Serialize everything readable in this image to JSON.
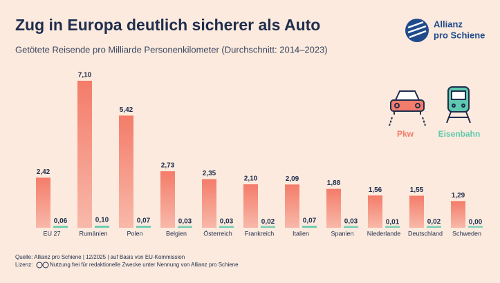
{
  "chart_data": {
    "type": "bar",
    "title": "Zug in Europa deutlich sicherer als Auto",
    "subtitle": "Getötete Reisende pro Milliarde Personenkilometer (Durchschnitt: 2014–2023)",
    "logo": [
      "Allianz",
      "pro Schiene"
    ],
    "source": "Quelle: Allianz pro Schiene | 12/2025 | auf Basis von EU-Kommission",
    "license_label": "Lizenz:",
    "license": "Nutzung frei für redaktionelle Zwecke unter Nennung von Allianz pro Schiene",
    "categories": [
      "EU 27",
      "Rumänien",
      "Polen",
      "Belgien",
      "Österreich",
      "Frankreich",
      "Italien",
      "Spanien",
      "Niederlande",
      "Deutschland",
      "Schweden"
    ],
    "series": [
      {
        "name": "Pkw",
        "color": "#f47c6a",
        "values": [
          2.42,
          7.1,
          5.42,
          2.73,
          2.35,
          2.1,
          2.09,
          1.88,
          1.56,
          1.55,
          1.29
        ],
        "value_labels": [
          "2,42",
          "7,10",
          "5,42",
          "2,73",
          "2,35",
          "2,10",
          "2,09",
          "1,88",
          "1,56",
          "1,55",
          "1,29"
        ]
      },
      {
        "name": "Eisenbahn",
        "color": "#5ec9ae",
        "values": [
          0.06,
          0.1,
          0.07,
          0.03,
          0.03,
          0.02,
          0.07,
          0.03,
          0.01,
          0.02,
          0.0
        ],
        "value_labels": [
          "0,06",
          "0,10",
          "0,07",
          "0,03",
          "0,03",
          "0,02",
          "0,07",
          "0,03",
          "0,01",
          "0,02",
          "0,00"
        ]
      }
    ]
  }
}
